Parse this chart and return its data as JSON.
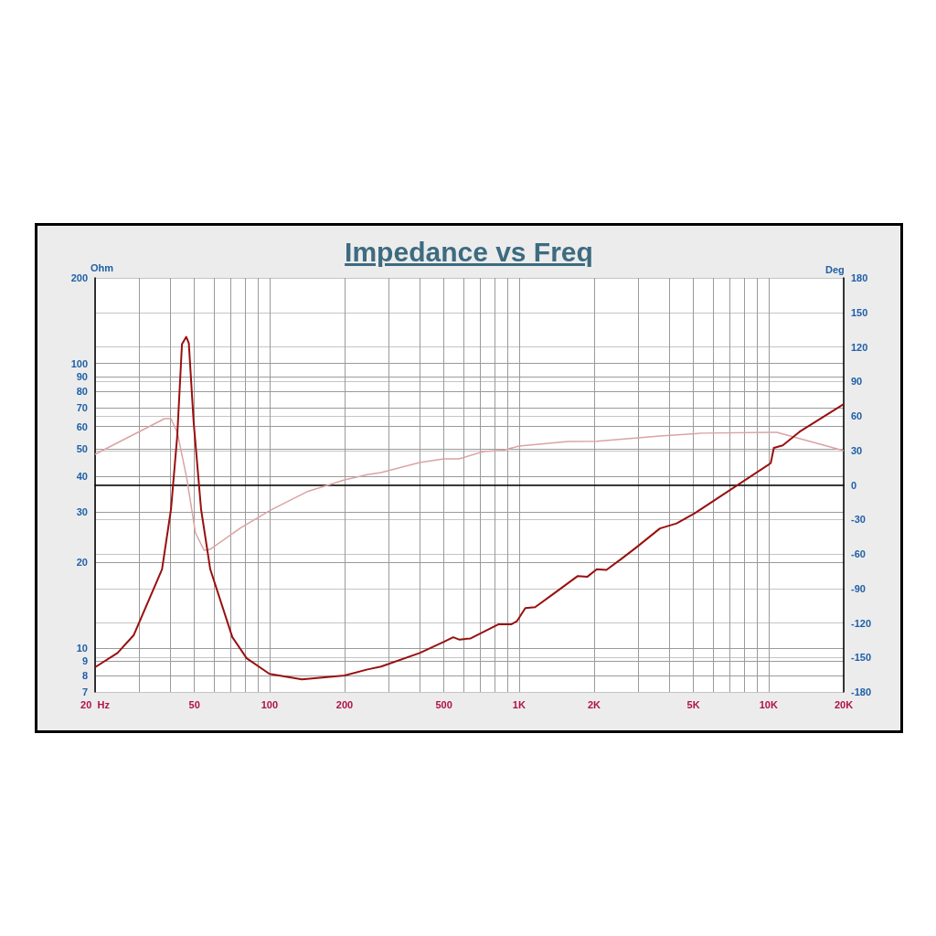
{
  "chart_data": {
    "type": "line",
    "title": "Impedance vs Freq",
    "ylabel": "Ohm",
    "y2label": "Deg",
    "log": "xy",
    "grid": true,
    "marker": "none",
    "line_style": "solid",
    "xlim": [
      20,
      20000
    ],
    "xticks": [
      {
        "value": 20,
        "label": "20  Hz"
      },
      {
        "value": 30,
        "label": null
      },
      {
        "value": 40,
        "label": null
      },
      50,
      {
        "value": 60,
        "label": null
      },
      {
        "value": 70,
        "label": null
      },
      {
        "value": 80,
        "label": null
      },
      {
        "value": 90,
        "label": null
      },
      100,
      200,
      {
        "value": 300,
        "label": null
      },
      {
        "value": 400,
        "label": null
      },
      500,
      {
        "value": 600,
        "label": null
      },
      {
        "value": 700,
        "label": null
      },
      {
        "value": 800,
        "label": null
      },
      {
        "value": 900,
        "label": null
      },
      {
        "value": 1000,
        "label": "1K"
      },
      {
        "value": 2000,
        "label": "2K"
      },
      {
        "value": 3000,
        "label": null
      },
      {
        "value": 4000,
        "label": null
      },
      {
        "value": 5000,
        "label": "5K"
      },
      {
        "value": 6000,
        "label": null
      },
      {
        "value": 7000,
        "label": null
      },
      {
        "value": 8000,
        "label": null
      },
      {
        "value": 9000,
        "label": null
      },
      {
        "value": 10000,
        "label": "10K"
      },
      {
        "value": 20000,
        "label": "20K"
      }
    ],
    "ylim": [
      7,
      200
    ],
    "yticks": [
      7,
      8,
      9,
      10,
      20,
      30,
      40,
      50,
      60,
      70,
      80,
      90,
      100,
      200
    ],
    "y2lim": [
      -180,
      180
    ],
    "y2ticks": [
      -180,
      -150,
      -120,
      -90,
      -60,
      -30,
      0,
      30,
      60,
      90,
      120,
      150,
      180
    ],
    "series": [
      {
        "color": "#990f0f",
        "x": [
          20,
          24.6,
          28.6,
          37.1,
          40.3,
          42.7,
          44.6,
          46.4,
          47.5,
          49.7,
          53.2,
          57.9,
          71,
          81,
          100,
          135,
          200,
          247,
          280,
          400,
          500,
          545,
          575,
          640,
          826,
          930,
          980,
          1060,
          1160,
          1375,
          1720,
          1880,
          2050,
          2240,
          2580,
          2960,
          3670,
          4280,
          5050,
          10200,
          10500,
          11400,
          13300,
          20000
        ],
        "values": [
          8.55,
          9.6,
          11.1,
          18.9,
          30.7,
          55.7,
          117,
          124,
          118,
          61.8,
          30.7,
          18.9,
          10.9,
          9.2,
          8.1,
          7.75,
          8.0,
          8.4,
          8.6,
          9.6,
          10.5,
          10.9,
          10.7,
          10.8,
          12.1,
          12.1,
          12.4,
          13.8,
          13.9,
          15.5,
          17.9,
          17.8,
          18.9,
          18.8,
          20.6,
          22.6,
          26.3,
          27.4,
          29.7,
          44.6,
          50.5,
          51.5,
          57.5,
          72
        ]
      },
      {
        "color": "#dba3a3",
        "axis": "y2",
        "x": [
          20,
          38,
          40.3,
          42.7,
          46.6,
          50.5,
          54.7,
          57.9,
          77,
          101,
          141,
          200,
          247,
          280,
          400,
          500,
          575,
          720,
          860,
          1000,
          1570,
          2050,
          3670,
          5400,
          10200,
          10800,
          20000
        ],
        "values": [
          26.6,
          57.6,
          57.6,
          45.7,
          6,
          -41.7,
          -56.8,
          -56,
          -37,
          -22,
          -6,
          4.4,
          9,
          10.7,
          19.5,
          22.6,
          22.6,
          29,
          30,
          33.8,
          37.7,
          38,
          42.5,
          45,
          45.7,
          45.7,
          29.8
        ]
      }
    ]
  }
}
